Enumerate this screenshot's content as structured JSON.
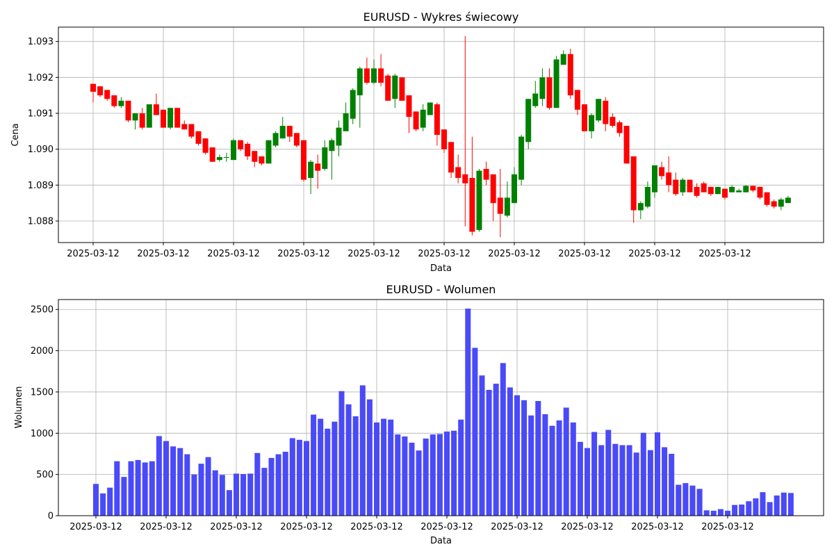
{
  "chart_data": [
    {
      "type": "candlestick",
      "title": "EURUSD - Wykres świecowy",
      "xlabel": "Data",
      "ylabel": "Cena",
      "ylim": [
        1.0874,
        1.0934
      ],
      "yticks": [
        1.088,
        1.089,
        1.09,
        1.091,
        1.092,
        1.093
      ],
      "xtick_labels": [
        "2025-03-12",
        "2025-03-12",
        "2025-03-12",
        "2025-03-12",
        "2025-03-12",
        "2025-03-12",
        "2025-03-12",
        "2025-03-12",
        "2025-03-12",
        "2025-03-12"
      ],
      "xtick_indices": [
        0,
        10,
        20,
        30,
        40,
        50,
        60,
        70,
        80,
        90
      ],
      "grid": true,
      "up_color": "#008000",
      "down_color": "#ff0000",
      "ohlc": [
        [
          1.09182,
          1.09182,
          1.0913,
          1.0916
        ],
        [
          1.09175,
          1.09175,
          1.09145,
          1.0915
        ],
        [
          1.09165,
          1.09165,
          1.09135,
          1.0914
        ],
        [
          1.0915,
          1.0915,
          1.09115,
          1.0912
        ],
        [
          1.0912,
          1.09145,
          1.09115,
          1.09135
        ],
        [
          1.09135,
          1.09135,
          1.09075,
          1.0908
        ],
        [
          1.0908,
          1.091,
          1.09055,
          1.091
        ],
        [
          1.091,
          1.09115,
          1.09055,
          1.0906
        ],
        [
          1.0906,
          1.09125,
          1.0906,
          1.09125
        ],
        [
          1.09125,
          1.09155,
          1.09095,
          1.09095
        ],
        [
          1.0911,
          1.0911,
          1.0906,
          1.0906
        ],
        [
          1.0906,
          1.09115,
          1.09055,
          1.09115
        ],
        [
          1.09115,
          1.09115,
          1.0906,
          1.0906
        ],
        [
          1.0907,
          1.0908,
          1.09055,
          1.09055
        ],
        [
          1.0907,
          1.0907,
          1.0903,
          1.09035
        ],
        [
          1.0905,
          1.0905,
          1.0901,
          1.09015
        ],
        [
          1.0903,
          1.0903,
          1.08985,
          1.0899
        ],
        [
          1.09005,
          1.09005,
          1.08965,
          1.08965
        ],
        [
          1.0897,
          1.08985,
          1.08965,
          1.08978
        ],
        [
          1.08978,
          1.0899,
          1.08965,
          1.08978
        ],
        [
          1.0897,
          1.0903,
          1.0897,
          1.09025
        ],
        [
          1.09025,
          1.09025,
          1.08995,
          1.09
        ],
        [
          1.09015,
          1.0902,
          1.0897,
          1.0898
        ],
        [
          1.08995,
          1.08995,
          1.0895,
          1.08965
        ],
        [
          1.0898,
          1.0898,
          1.08955,
          1.0896
        ],
        [
          1.0896,
          1.09025,
          1.0896,
          1.09025
        ],
        [
          1.0901,
          1.0905,
          1.09005,
          1.09045
        ],
        [
          1.0903,
          1.0909,
          1.0903,
          1.09065
        ],
        [
          1.09065,
          1.09065,
          1.0902,
          1.09035
        ],
        [
          1.09045,
          1.09045,
          1.09005,
          1.0901
        ],
        [
          1.09025,
          1.09025,
          1.0891,
          1.08915
        ],
        [
          1.0892,
          1.0897,
          1.08875,
          1.08965
        ],
        [
          1.0896,
          1.08985,
          1.0889,
          1.0894
        ],
        [
          1.08945,
          1.09025,
          1.0894,
          1.09005
        ],
        [
          1.08995,
          1.0903,
          1.08915,
          1.09025
        ],
        [
          1.0901,
          1.0908,
          1.0898,
          1.0906
        ],
        [
          1.0905,
          1.0913,
          1.0905,
          1.091
        ],
        [
          1.09085,
          1.0917,
          1.0907,
          1.09165
        ],
        [
          1.0915,
          1.0923,
          1.0906,
          1.09225
        ],
        [
          1.09225,
          1.09255,
          1.0918,
          1.09185
        ],
        [
          1.09185,
          1.0925,
          1.0918,
          1.09225
        ],
        [
          1.09225,
          1.09265,
          1.09175,
          1.09185
        ],
        [
          1.09205,
          1.0921,
          1.09135,
          1.09135
        ],
        [
          1.0914,
          1.0921,
          1.09115,
          1.09205
        ],
        [
          1.092,
          1.092,
          1.09135,
          1.09135
        ],
        [
          1.0915,
          1.0915,
          1.09045,
          1.0909
        ],
        [
          1.09105,
          1.09105,
          1.0905,
          1.09055
        ],
        [
          1.0906,
          1.09125,
          1.0905,
          1.0911
        ],
        [
          1.09095,
          1.0913,
          1.09095,
          1.0913
        ],
        [
          1.09125,
          1.0913,
          1.0901,
          1.0904
        ],
        [
          1.09055,
          1.09055,
          1.0899,
          1.09
        ],
        [
          1.0902,
          1.0902,
          1.0892,
          1.08935
        ],
        [
          1.0895,
          1.08985,
          1.08905,
          1.0892
        ],
        [
          1.0893,
          1.09315,
          1.08785,
          1.08905
        ],
        [
          1.0892,
          1.09035,
          1.0876,
          1.0877
        ],
        [
          1.08775,
          1.08945,
          1.0877,
          1.0894
        ],
        [
          1.08945,
          1.08965,
          1.089,
          1.08915
        ],
        [
          1.0893,
          1.0893,
          1.088,
          1.0885
        ],
        [
          1.08865,
          1.08945,
          1.08755,
          1.0882
        ],
        [
          1.08815,
          1.0891,
          1.0881,
          1.08865
        ],
        [
          1.0885,
          1.0895,
          1.0885,
          1.0893
        ],
        [
          1.08915,
          1.0904,
          1.089,
          1.09035
        ],
        [
          1.0902,
          1.0914,
          1.09,
          1.0914
        ],
        [
          1.0912,
          1.0919,
          1.09115,
          1.09155
        ],
        [
          1.0914,
          1.09225,
          1.0912,
          1.092
        ],
        [
          1.092,
          1.09225,
          1.0911,
          1.09115
        ],
        [
          1.09115,
          1.0926,
          1.09115,
          1.0925
        ],
        [
          1.09235,
          1.09275,
          1.09235,
          1.09265
        ],
        [
          1.09265,
          1.0928,
          1.0914,
          1.0915
        ],
        [
          1.09165,
          1.09165,
          1.09095,
          1.0911
        ],
        [
          1.09125,
          1.09125,
          1.0905,
          1.0905
        ],
        [
          1.0905,
          1.091,
          1.0903,
          1.09095
        ],
        [
          1.0908,
          1.0914,
          1.09075,
          1.0914
        ],
        [
          1.09135,
          1.09145,
          1.0905,
          1.0907
        ],
        [
          1.0909,
          1.091,
          1.0906,
          1.09065
        ],
        [
          1.09075,
          1.0908,
          1.09035,
          1.09045
        ],
        [
          1.09065,
          1.09065,
          1.0896,
          1.0896
        ],
        [
          1.0898,
          1.0898,
          1.08795,
          1.0883
        ],
        [
          1.0883,
          1.08855,
          1.08805,
          1.0885
        ],
        [
          1.0884,
          1.0891,
          1.08835,
          1.08895
        ],
        [
          1.0888,
          1.08955,
          1.08865,
          1.08955
        ],
        [
          1.0895,
          1.08965,
          1.08915,
          1.08925
        ],
        [
          1.08935,
          1.0898,
          1.0888,
          1.089
        ],
        [
          1.08915,
          1.08935,
          1.0887,
          1.08875
        ],
        [
          1.0888,
          1.0892,
          1.0887,
          1.08915
        ],
        [
          1.08915,
          1.08915,
          1.0888,
          1.0888
        ],
        [
          1.08895,
          1.08905,
          1.08865,
          1.0887
        ],
        [
          1.08905,
          1.0891,
          1.0888,
          1.0888
        ],
        [
          1.08895,
          1.08895,
          1.0887,
          1.08875
        ],
        [
          1.08875,
          1.08895,
          1.08875,
          1.08895
        ],
        [
          1.0889,
          1.0889,
          1.0886,
          1.08865
        ],
        [
          1.0888,
          1.089,
          1.0888,
          1.08895
        ],
        [
          1.0888,
          1.0889,
          1.0888,
          1.08885
        ],
        [
          1.0888,
          1.089,
          1.0888,
          1.08898
        ],
        [
          1.08898,
          1.08898,
          1.0888,
          1.08885
        ],
        [
          1.08895,
          1.08895,
          1.0886,
          1.08865
        ],
        [
          1.0888,
          1.0888,
          1.0884,
          1.08845
        ],
        [
          1.08855,
          1.0886,
          1.08835,
          1.0884
        ],
        [
          1.0884,
          1.08865,
          1.0883,
          1.0886
        ],
        [
          1.0885,
          1.0887,
          1.0885,
          1.08865
        ]
      ]
    },
    {
      "type": "bar",
      "title": "EURUSD - Wolumen",
      "xlabel": "Data",
      "ylabel": "Wolumen",
      "ylim": [
        0,
        2620
      ],
      "yticks": [
        0,
        500,
        1000,
        1500,
        2000,
        2500
      ],
      "xtick_labels": [
        "2025-03-12",
        "2025-03-12",
        "2025-03-12",
        "2025-03-12",
        "2025-03-12",
        "2025-03-12",
        "2025-03-12",
        "2025-03-12",
        "2025-03-12",
        "2025-03-12"
      ],
      "xtick_indices": [
        0,
        10,
        20,
        30,
        40,
        50,
        60,
        70,
        80,
        90
      ],
      "grid": true,
      "bar_color": "#4a4af8",
      "values": [
        385,
        270,
        340,
        660,
        470,
        660,
        675,
        645,
        660,
        965,
        905,
        840,
        820,
        745,
        500,
        630,
        710,
        550,
        495,
        310,
        510,
        505,
        510,
        760,
        580,
        700,
        745,
        775,
        940,
        920,
        905,
        1225,
        1175,
        1055,
        1140,
        1510,
        1350,
        1205,
        1580,
        1410,
        1130,
        1175,
        1165,
        985,
        960,
        885,
        790,
        935,
        985,
        990,
        1020,
        1030,
        1165,
        2510,
        2035,
        1700,
        1525,
        1600,
        1850,
        1555,
        1460,
        1400,
        1215,
        1390,
        1230,
        1090,
        1155,
        1310,
        1130,
        895,
        820,
        1015,
        855,
        1040,
        870,
        855,
        855,
        765,
        1005,
        795,
        1010,
        830,
        750,
        375,
        395,
        365,
        325,
        65,
        60,
        80,
        60,
        130,
        135,
        175,
        210,
        285,
        165,
        245,
        280,
        275
      ]
    }
  ]
}
